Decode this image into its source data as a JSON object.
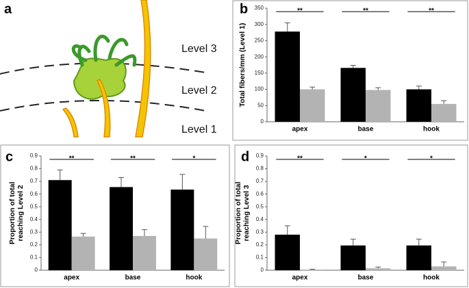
{
  "figure": {
    "panel_a": {
      "panel_label": "a",
      "levels": [
        "Level 3",
        "Level 2",
        "Level 1"
      ]
    }
  },
  "chart_data": [
    {
      "type": "bar",
      "panel_label": "b",
      "y_label": [
        "Total fibers/mm (Level 1)"
      ],
      "categories": [
        "apex",
        "base",
        "hook"
      ],
      "series": [
        {
          "color": "#000000",
          "values": [
            278,
            166,
            100
          ],
          "errors": [
            27,
            8,
            10
          ]
        },
        {
          "color": "#b3b3b3",
          "values": [
            100,
            98,
            55
          ],
          "errors": [
            7,
            7,
            10
          ]
        }
      ],
      "annotations": [
        "**",
        "**",
        "**"
      ],
      "ylim": [
        0,
        350
      ],
      "yticks": [
        0,
        50,
        100,
        150,
        200,
        250,
        300,
        350
      ]
    },
    {
      "type": "bar",
      "panel_label": "c",
      "y_label": [
        "Proportion of total",
        "reaching Level 2"
      ],
      "categories": [
        "apex",
        "base",
        "hook"
      ],
      "series": [
        {
          "color": "#000000",
          "values": [
            0.71,
            0.655,
            0.635
          ],
          "errors": [
            0.08,
            0.075,
            0.12
          ]
        },
        {
          "color": "#b3b3b3",
          "values": [
            0.265,
            0.27,
            0.25
          ],
          "errors": [
            0.025,
            0.05,
            0.095
          ]
        }
      ],
      "annotations": [
        "**",
        "**",
        "*"
      ],
      "ylim": [
        0,
        0.9
      ],
      "yticks": [
        0,
        0.1,
        0.2,
        0.3,
        0.4,
        0.5,
        0.6,
        0.7,
        0.8,
        0.9
      ]
    },
    {
      "type": "bar",
      "panel_label": "d",
      "y_label": [
        "Proportion of total",
        "reaching Level 3"
      ],
      "categories": [
        "apex",
        "base",
        "hook"
      ],
      "series": [
        {
          "color": "#000000",
          "values": [
            0.28,
            0.195,
            0.195
          ],
          "errors": [
            0.07,
            0.05,
            0.05
          ]
        },
        {
          "color": "#b3b3b3",
          "values": [
            0.005,
            0.015,
            0.03
          ],
          "errors": [
            0.003,
            0.01,
            0.035
          ]
        }
      ],
      "annotations": [
        "**",
        "*",
        "*"
      ],
      "ylim": [
        0,
        0.9
      ],
      "yticks": [
        0,
        0.1,
        0.2,
        0.3,
        0.4,
        0.5,
        0.6,
        0.7,
        0.8,
        0.9
      ]
    }
  ]
}
